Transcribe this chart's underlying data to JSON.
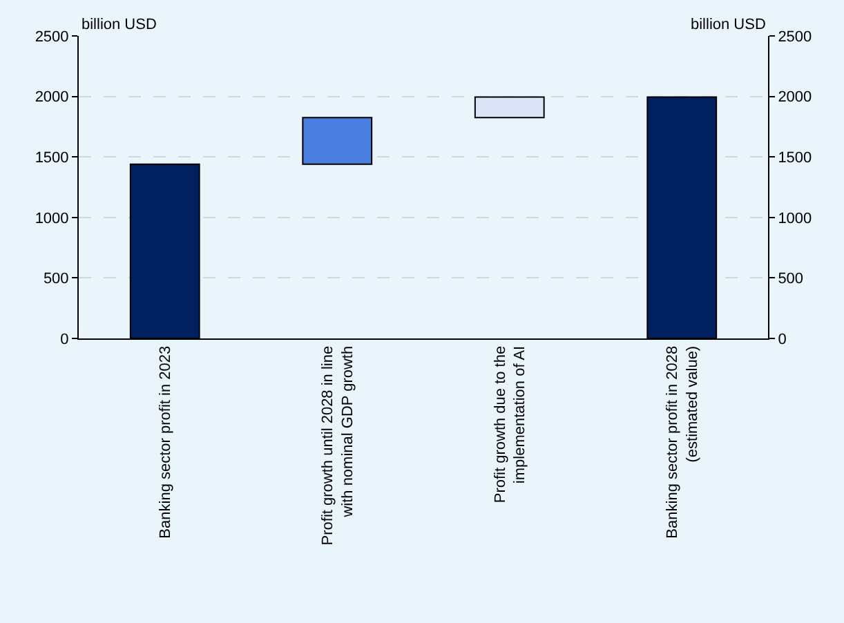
{
  "chart_data": {
    "type": "bar",
    "categories": [
      "Banking sector profit in 2023",
      "Profit growth until 2028 in line\nwith nominal GDP growth",
      "Profit growth due to the\nimplementation of AI",
      "Banking sector profit in 2028\n(estimated value)"
    ],
    "values": [
      1440,
      385,
      170,
      1995
    ],
    "base": [
      0,
      1440,
      1825,
      0
    ],
    "colors": [
      "#002060",
      "#4a7fe0",
      "#dbe5f7",
      "#002060"
    ],
    "ylabel": "billion USD",
    "y2label": "billion USD",
    "ylim": [
      0,
      2500
    ],
    "yticks": [
      0,
      500,
      1000,
      1500,
      2000,
      2500
    ],
    "y2lim": [
      0,
      2500
    ],
    "y2ticks": [
      0,
      500,
      1000,
      1500,
      2000,
      2500
    ],
    "grid": "y"
  }
}
